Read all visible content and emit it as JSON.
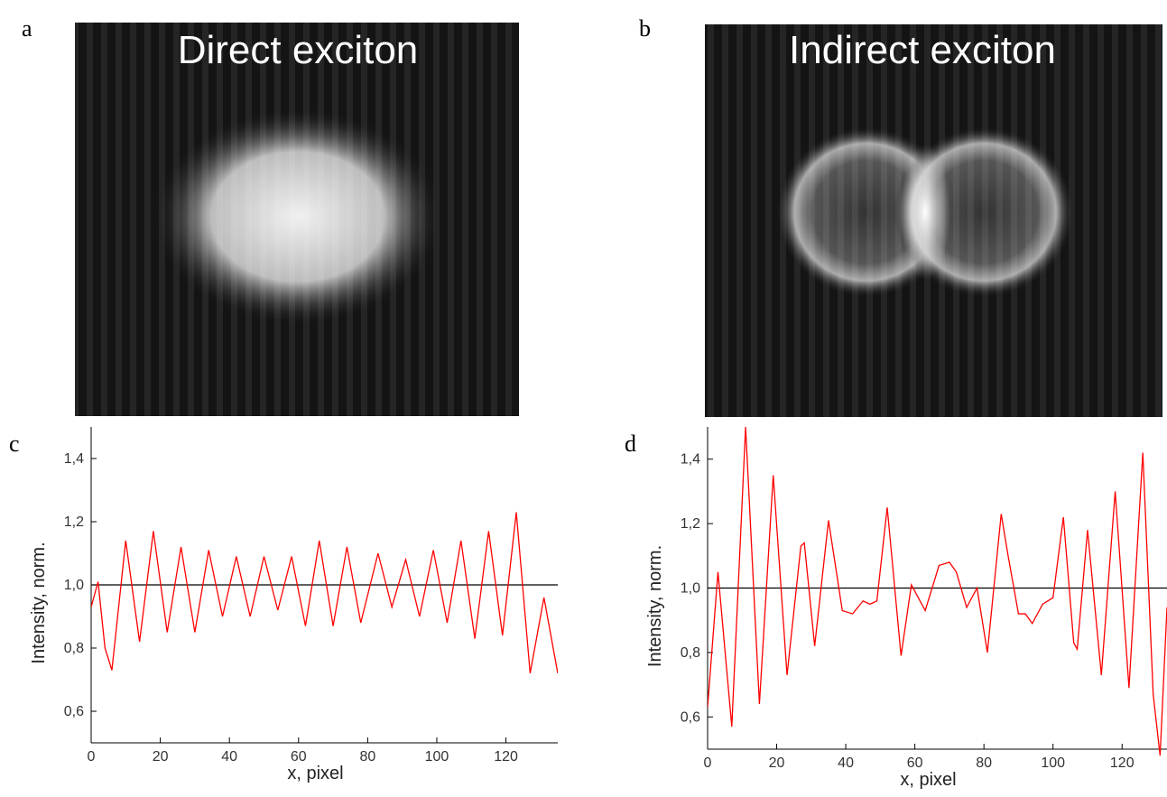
{
  "images": [
    {
      "label": "a",
      "title": "Direct exciton"
    },
    {
      "label": "b",
      "title": "Indirect exciton"
    }
  ],
  "chart_data": [
    {
      "type": "line",
      "label": "c",
      "xlabel": "x, pixel",
      "ylabel": "Intensity, norm.",
      "xlim": [
        0,
        135
      ],
      "xticks": [
        0,
        20,
        40,
        60,
        80,
        100,
        120
      ],
      "ylim": [
        0.5,
        1.5
      ],
      "yticks": [
        {
          "value": 0.6,
          "label": "0,6"
        },
        {
          "value": 0.8,
          "label": "0,8"
        },
        {
          "value": 1.0,
          "label": "1,0"
        },
        {
          "value": 1.2,
          "label": "1,2"
        },
        {
          "value": 1.4,
          "label": "1,4"
        }
      ],
      "hline": 1.0,
      "series": [
        {
          "color": "#ff0000",
          "x": [
            0,
            2,
            4,
            6,
            10,
            14,
            18,
            22,
            26,
            30,
            34,
            38,
            42,
            46,
            50,
            54,
            58,
            62,
            66,
            70,
            74,
            78,
            83,
            87,
            91,
            95,
            99,
            103,
            107,
            111,
            115,
            119,
            123,
            127,
            131,
            135
          ],
          "values": [
            0.93,
            1.01,
            0.8,
            0.73,
            1.14,
            0.82,
            1.17,
            0.85,
            1.12,
            0.85,
            1.11,
            0.9,
            1.09,
            0.9,
            1.09,
            0.92,
            1.09,
            0.87,
            1.14,
            0.87,
            1.12,
            0.88,
            1.1,
            0.93,
            1.08,
            0.9,
            1.11,
            0.88,
            1.14,
            0.83,
            1.17,
            0.84,
            1.23,
            0.72,
            0.96,
            0.72
          ]
        }
      ]
    },
    {
      "type": "line",
      "label": "d",
      "xlabel": "x, pixel",
      "ylabel": "Intensity, norm.",
      "xlim": [
        0,
        133
      ],
      "xticks": [
        0,
        20,
        40,
        60,
        80,
        100,
        120
      ],
      "ylim": [
        0.5,
        1.5
      ],
      "yticks": [
        {
          "value": 0.6,
          "label": "0,6"
        },
        {
          "value": 0.8,
          "label": "0,8"
        },
        {
          "value": 1.0,
          "label": "1,0"
        },
        {
          "value": 1.2,
          "label": "1,2"
        },
        {
          "value": 1.4,
          "label": "1,4"
        }
      ],
      "hline": 1.0,
      "series": [
        {
          "color": "#ff0000",
          "x": [
            0,
            3,
            7,
            11,
            15,
            19,
            23,
            27,
            28,
            31,
            35,
            39,
            42,
            45,
            47,
            49,
            52,
            56,
            59,
            63,
            67,
            70,
            72,
            75,
            78,
            81,
            85,
            87,
            90,
            92,
            94,
            97,
            100,
            103,
            106,
            107,
            110,
            114,
            118,
            122,
            126,
            129,
            131,
            133
          ],
          "values": [
            0.63,
            1.05,
            0.57,
            1.5,
            0.64,
            1.35,
            0.73,
            1.13,
            1.14,
            0.82,
            1.21,
            0.93,
            0.92,
            0.96,
            0.95,
            0.96,
            1.25,
            0.79,
            1.01,
            0.93,
            1.07,
            1.08,
            1.05,
            0.94,
            1.0,
            0.8,
            1.23,
            1.1,
            0.92,
            0.92,
            0.89,
            0.95,
            0.97,
            1.22,
            0.83,
            0.81,
            1.18,
            0.73,
            1.3,
            0.69,
            1.42,
            0.67,
            0.48,
            0.94
          ]
        }
      ]
    }
  ]
}
